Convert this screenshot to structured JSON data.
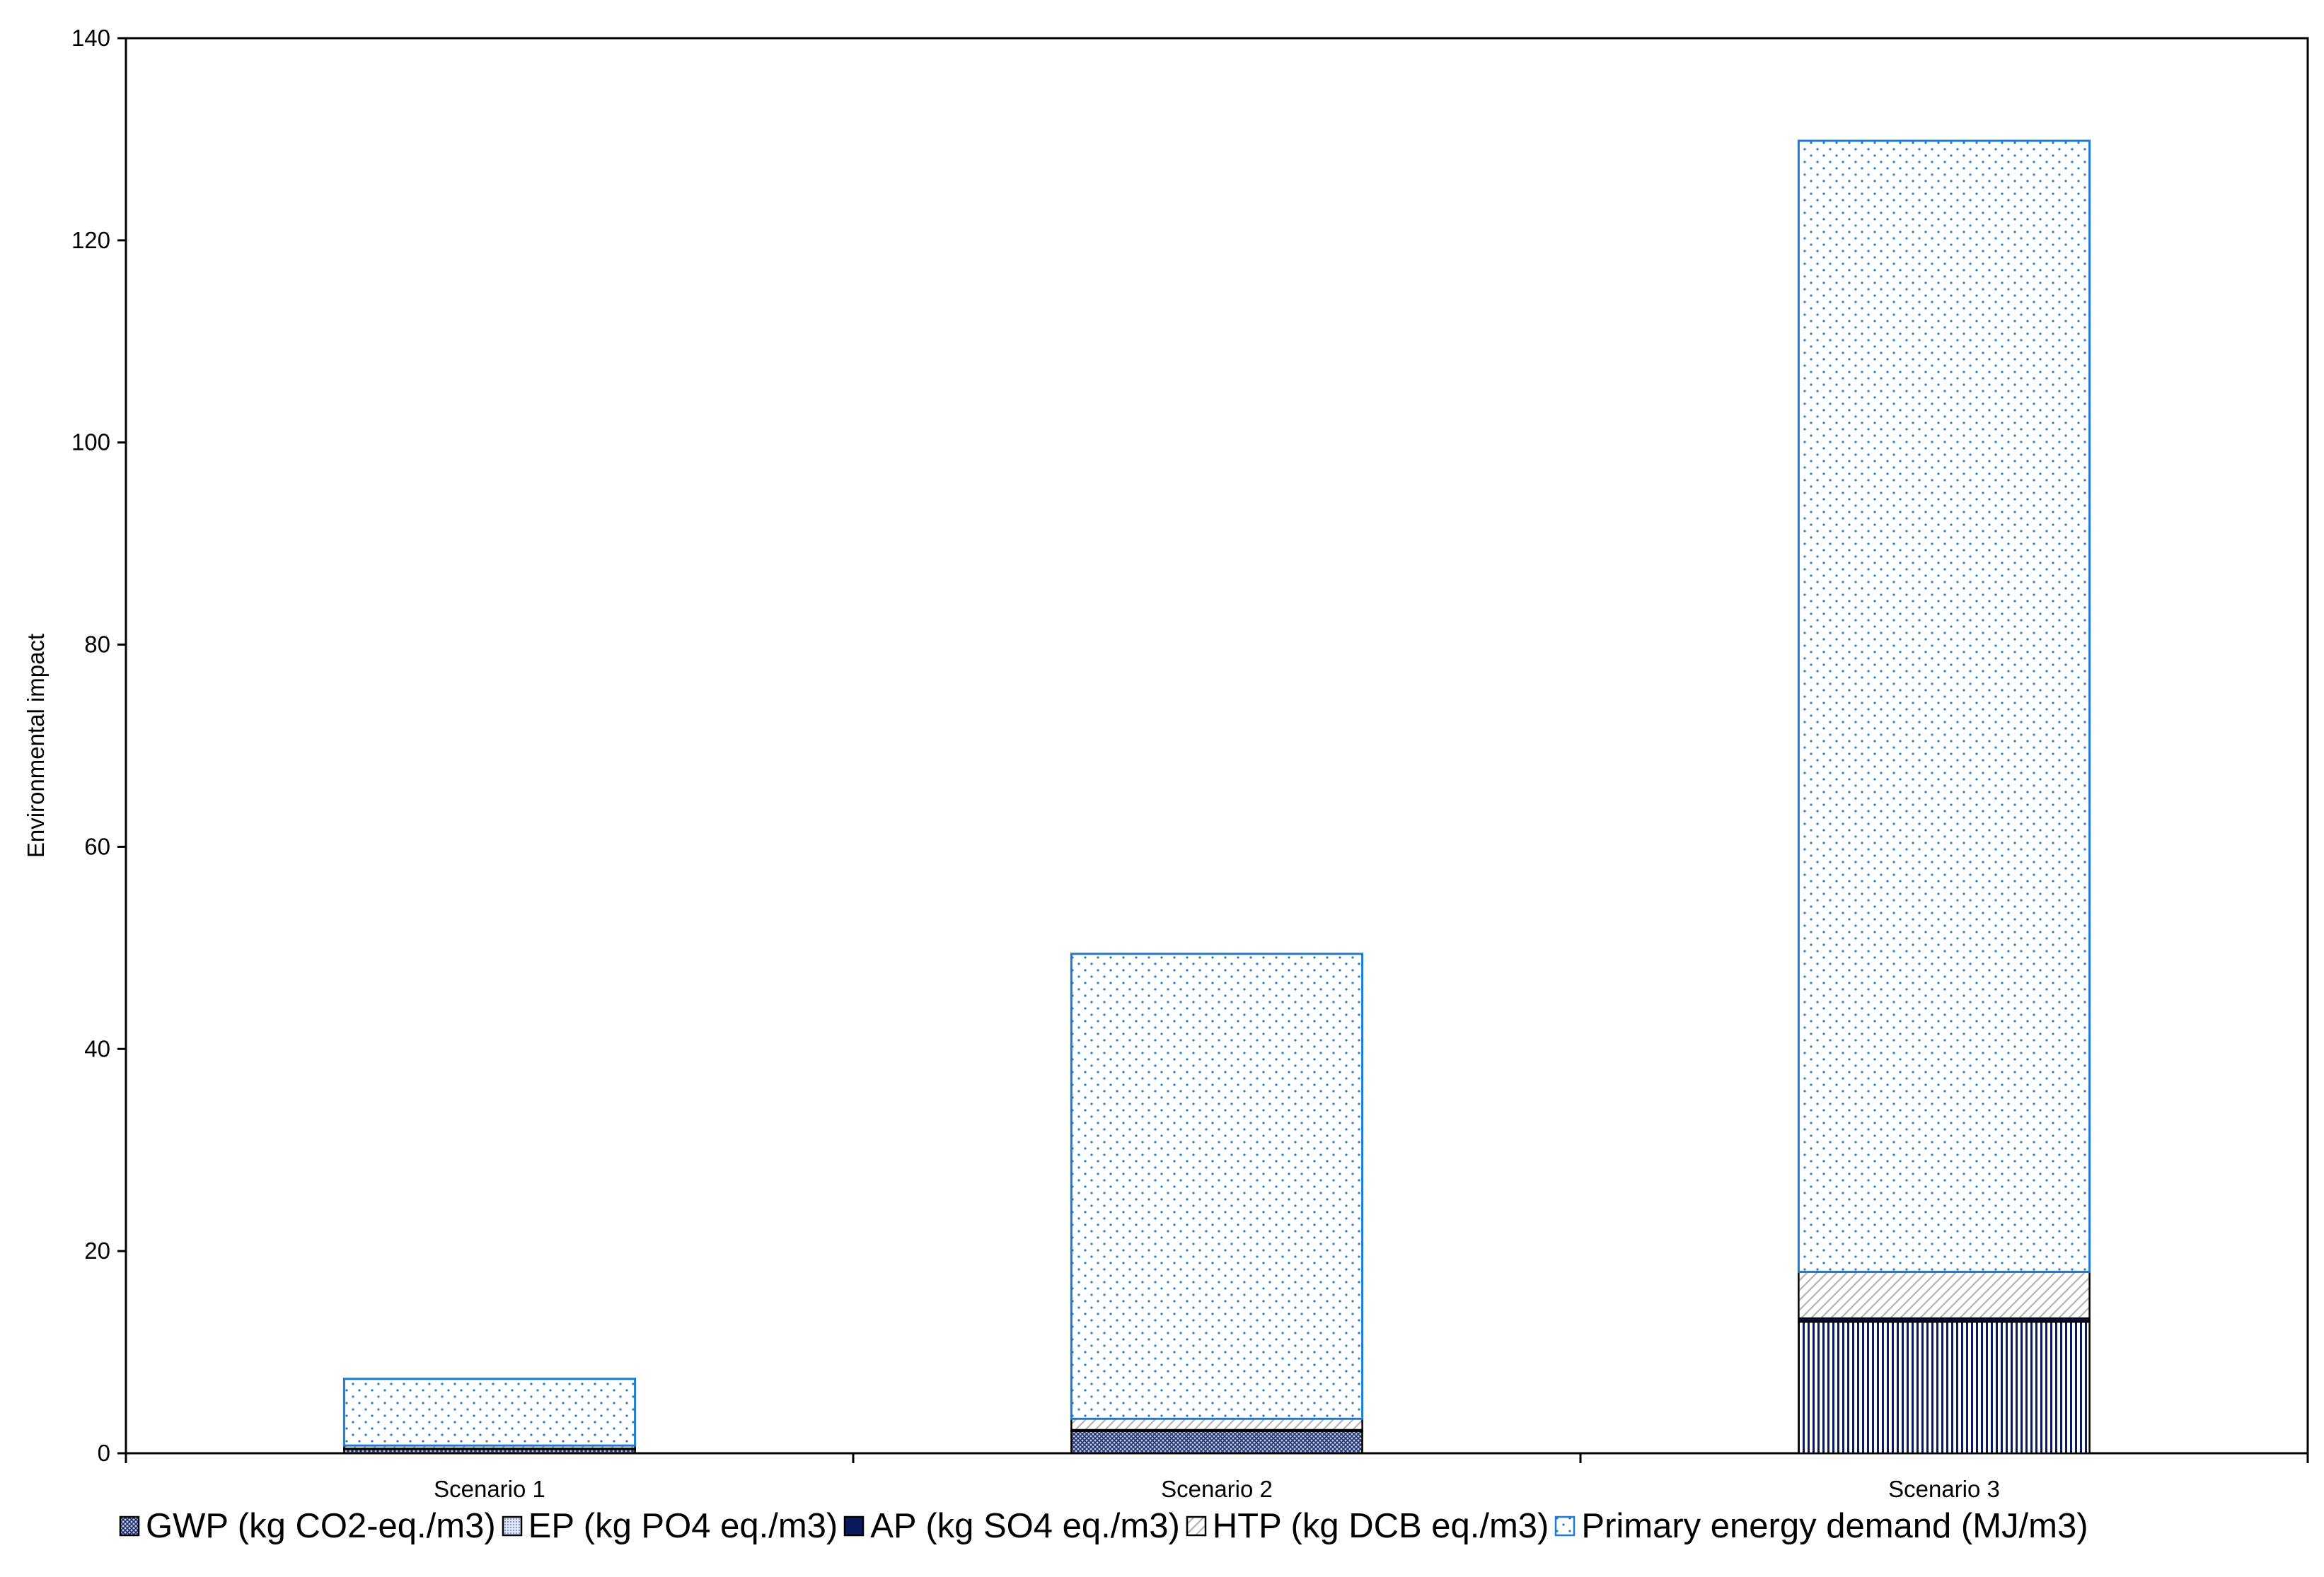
{
  "chart_data": {
    "type": "bar",
    "stacked": true,
    "title": "",
    "xlabel": "",
    "ylabel": "Environmental impact",
    "ylim": [
      0,
      140
    ],
    "yticks": [
      0,
      20,
      40,
      60,
      80,
      100,
      120,
      140
    ],
    "grid": false,
    "legend_position": "bottom",
    "categories": [
      "Scenario 1",
      "Scenario 2",
      "Scenario 3"
    ],
    "series": [
      {
        "name": "GWP (kg CO2-eq./m3)",
        "values": [
          0.4,
          2.2,
          13.0
        ],
        "color": "#2f3f7f",
        "pattern": "crosshatch"
      },
      {
        "name": "EP (kg PO4 eq./m3)",
        "values": [
          0.01,
          0.01,
          0.05
        ],
        "color": "#9fb0d8",
        "pattern": "fine"
      },
      {
        "name": "AP (kg SO4 eq./m3)",
        "values": [
          0.05,
          0.1,
          0.3
        ],
        "color": "#0a1a5c",
        "pattern": "solid"
      },
      {
        "name": "HTP (kg DCB eq./m3)",
        "values": [
          0.3,
          1.1,
          4.6
        ],
        "color": "#999999",
        "pattern": "diagonal"
      },
      {
        "name": "Primary energy demand (MJ/m3)",
        "values": [
          6.6,
          46.0,
          111.9
        ],
        "color": "#1e7bd4",
        "pattern": "dots"
      }
    ]
  }
}
